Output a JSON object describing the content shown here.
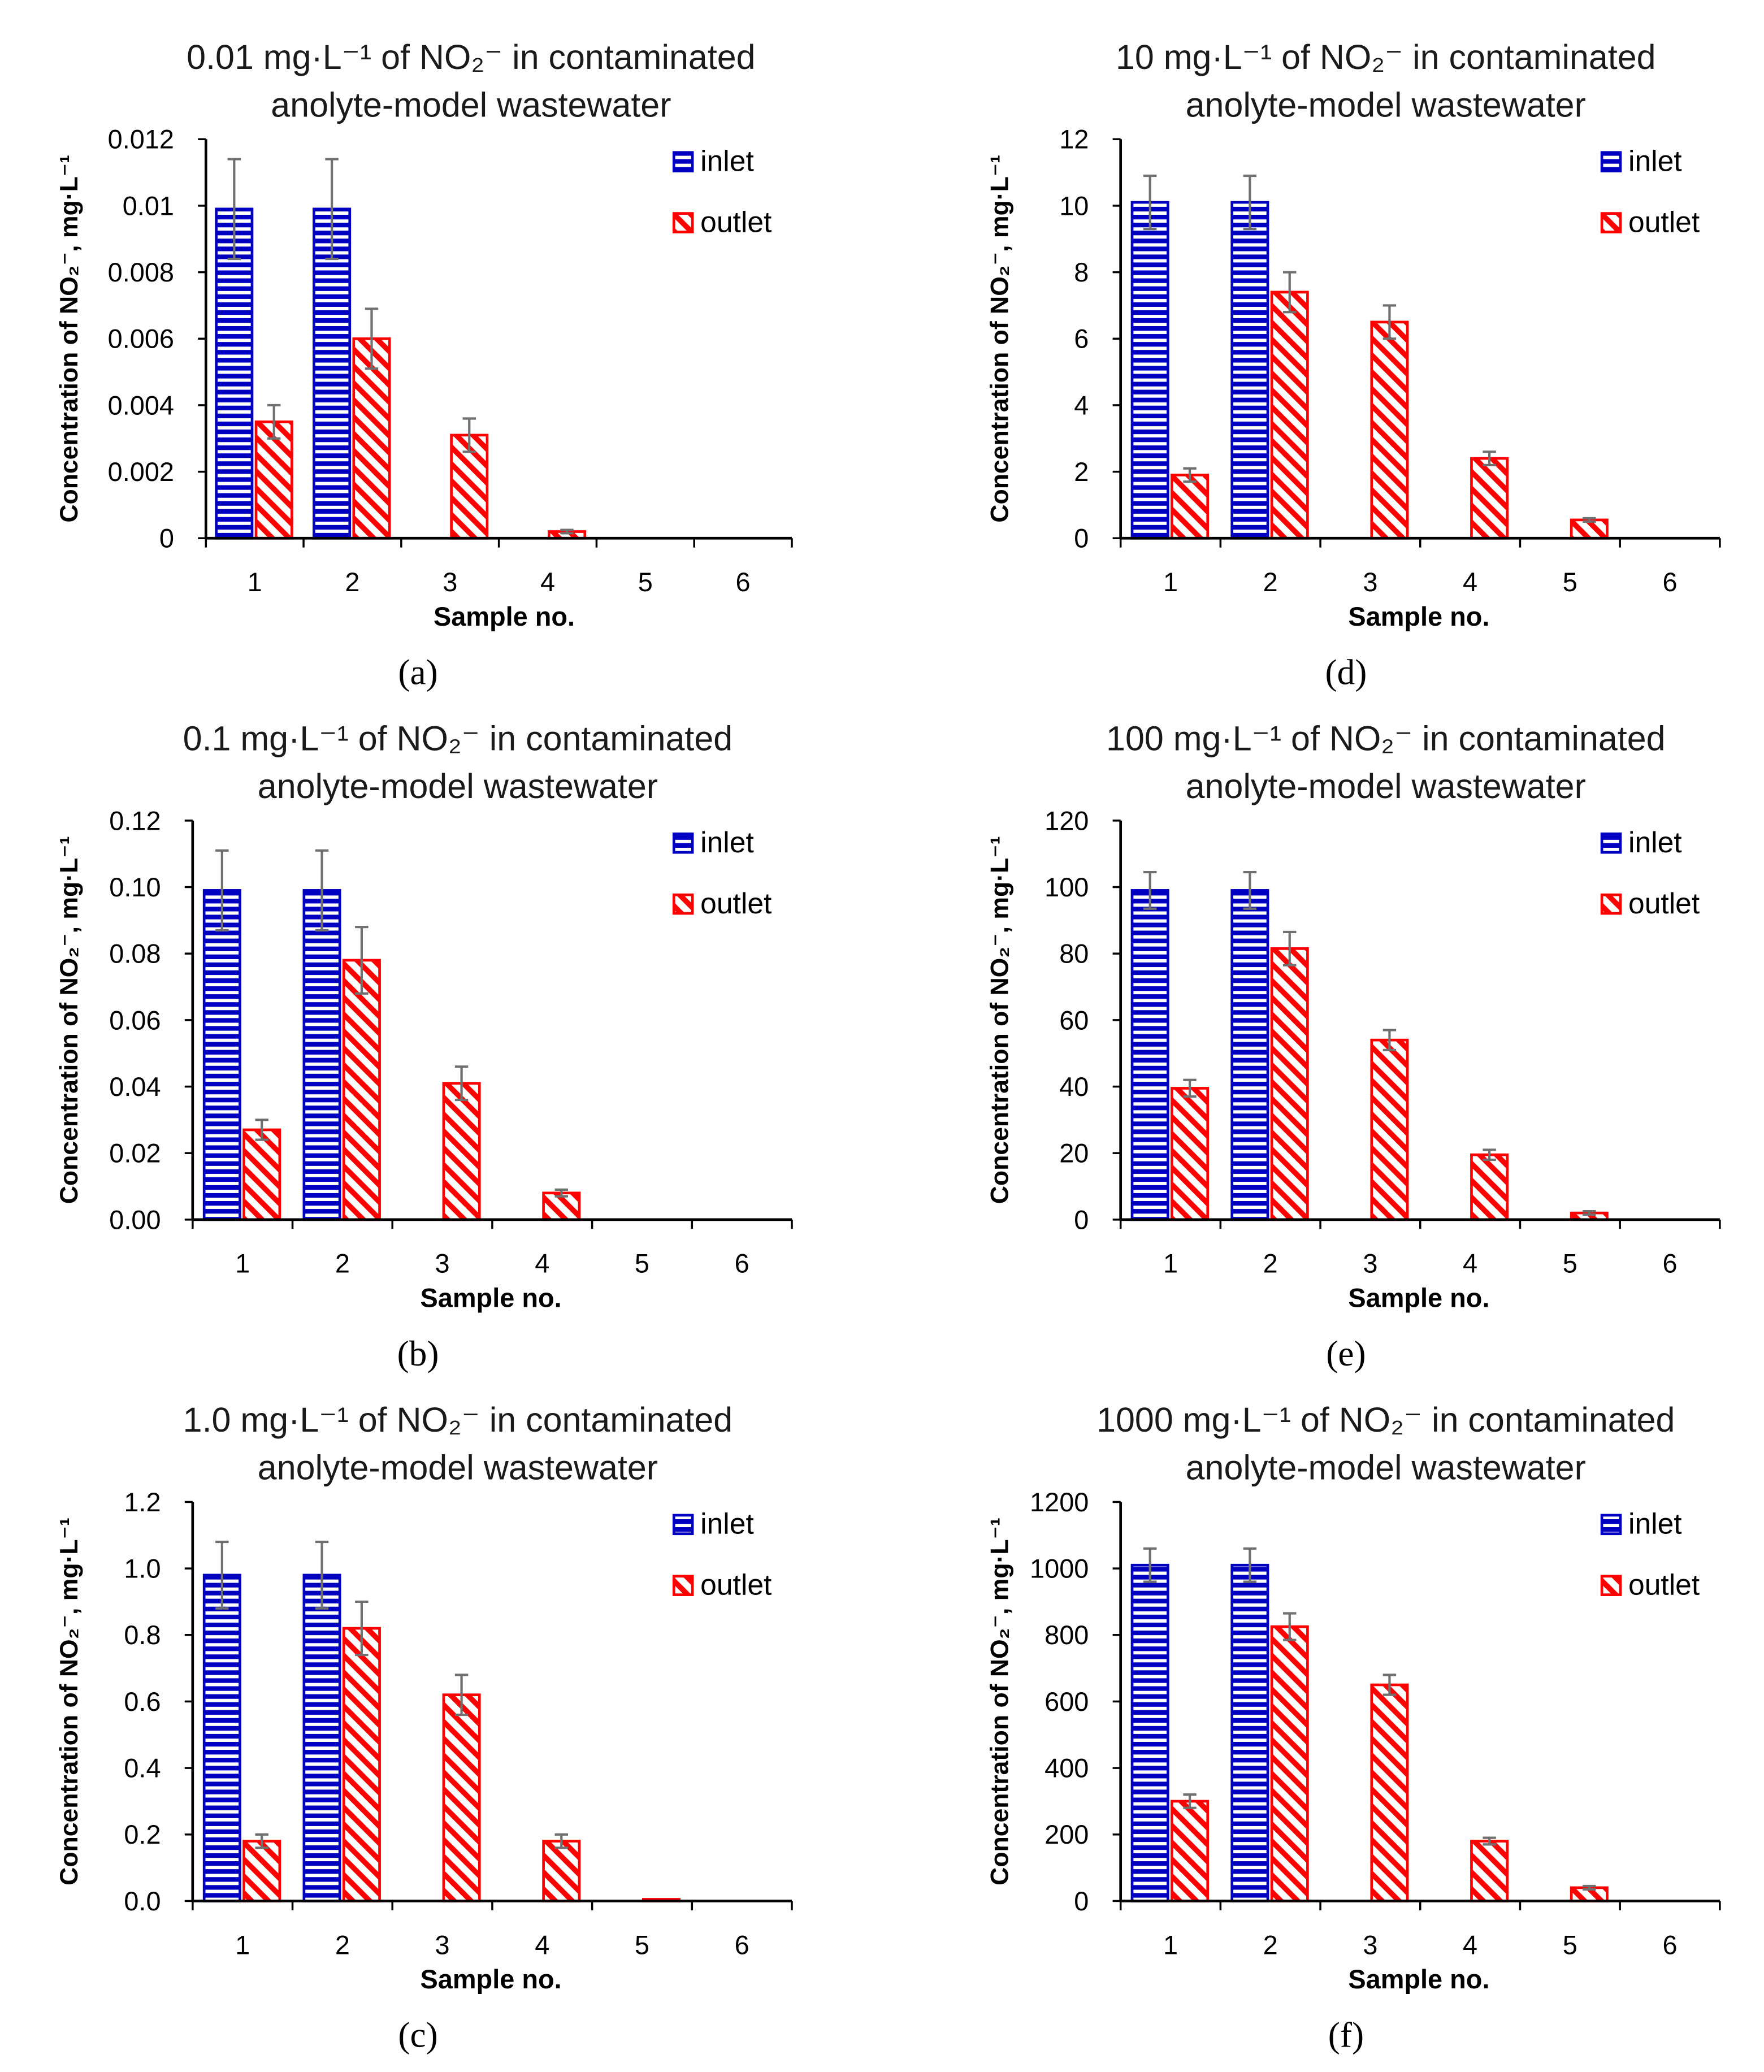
{
  "colors": {
    "inlet": "#0000c0",
    "outlet": "#ff0000",
    "error": "#707070",
    "axis": "#000000"
  },
  "chart_data": [
    {
      "type": "bar",
      "panel": "(a)",
      "title": [
        "0.01 mg·L⁻¹ of NO₂⁻ in contaminated",
        "anolyte-model wastewater"
      ],
      "xlabel": "Sample no.",
      "ylabel": "Concentration of NO₂⁻, mg·L⁻¹",
      "categories": [
        "1",
        "2",
        "3",
        "4",
        "5",
        "6"
      ],
      "ylim": [
        0,
        0.012
      ],
      "yticks": [
        "0",
        "0.002",
        "0.004",
        "0.006",
        "0.008",
        "0.01",
        "0.012"
      ],
      "legend": "top-right",
      "series": [
        {
          "name": "inlet",
          "values": [
            0.0099,
            0.0099,
            0,
            0,
            0,
            0
          ],
          "errors": [
            0.0015,
            0.0015,
            0,
            0,
            0,
            0
          ]
        },
        {
          "name": "outlet",
          "values": [
            0.0035,
            0.006,
            0.0031,
            0.0002,
            0,
            0
          ],
          "errors": [
            0.0005,
            0.0009,
            0.0005,
            5e-05,
            0,
            0
          ]
        }
      ]
    },
    {
      "type": "bar",
      "panel": "(b)",
      "title": [
        "0.1 mg·L⁻¹ of NO₂⁻ in contaminated",
        "anolyte-model wastewater"
      ],
      "xlabel": "Sample no.",
      "ylabel": "Concentration of NO₂⁻, mg·L⁻¹",
      "categories": [
        "1",
        "2",
        "3",
        "4",
        "5",
        "6"
      ],
      "ylim": [
        0,
        0.12
      ],
      "yticks": [
        "0.00",
        "0.02",
        "0.04",
        "0.06",
        "0.08",
        "0.10",
        "0.12"
      ],
      "legend": "top-right",
      "series": [
        {
          "name": "inlet",
          "values": [
            0.099,
            0.099,
            0,
            0,
            0,
            0
          ],
          "errors": [
            0.012,
            0.012,
            0,
            0,
            0,
            0
          ]
        },
        {
          "name": "outlet",
          "values": [
            0.027,
            0.078,
            0.041,
            0.008,
            0,
            0
          ],
          "errors": [
            0.003,
            0.01,
            0.005,
            0.001,
            0,
            0
          ]
        }
      ]
    },
    {
      "type": "bar",
      "panel": "(c)",
      "title": [
        "1.0 mg·L⁻¹ of NO₂⁻ in contaminated",
        "anolyte-model wastewater"
      ],
      "xlabel": "Sample no.",
      "ylabel": "Concentration of NO₂⁻, mg·L⁻¹",
      "categories": [
        "1",
        "2",
        "3",
        "4",
        "5",
        "6"
      ],
      "ylim": [
        0,
        1.2
      ],
      "yticks": [
        "0.0",
        "0.2",
        "0.4",
        "0.6",
        "0.8",
        "1.0",
        "1.2"
      ],
      "legend": "top-right",
      "series": [
        {
          "name": "inlet",
          "values": [
            0.98,
            0.98,
            0,
            0,
            0,
            0
          ],
          "errors": [
            0.1,
            0.1,
            0,
            0,
            0,
            0
          ]
        },
        {
          "name": "outlet",
          "values": [
            0.18,
            0.82,
            0.62,
            0.18,
            0.005,
            0
          ],
          "errors": [
            0.02,
            0.08,
            0.06,
            0.02,
            0,
            0
          ]
        }
      ]
    },
    {
      "type": "bar",
      "panel": "(d)",
      "title": [
        "10 mg·L⁻¹ of NO₂⁻ in contaminated",
        "anolyte-model wastewater"
      ],
      "xlabel": "Sample no.",
      "ylabel": "Concentration of NO₂⁻, mg·L⁻¹",
      "categories": [
        "1",
        "2",
        "3",
        "4",
        "5",
        "6"
      ],
      "ylim": [
        0,
        12
      ],
      "yticks": [
        "0",
        "2",
        "4",
        "6",
        "8",
        "10",
        "12"
      ],
      "legend": "top-right",
      "series": [
        {
          "name": "inlet",
          "values": [
            10.1,
            10.1,
            0,
            0,
            0,
            0
          ],
          "errors": [
            0.8,
            0.8,
            0,
            0,
            0,
            0
          ]
        },
        {
          "name": "outlet",
          "values": [
            1.9,
            7.4,
            6.5,
            2.4,
            0.55,
            0
          ],
          "errors": [
            0.2,
            0.6,
            0.5,
            0.2,
            0.05,
            0
          ]
        }
      ]
    },
    {
      "type": "bar",
      "panel": "(e)",
      "title": [
        "100 mg·L⁻¹ of NO₂⁻ in contaminated",
        "anolyte-model wastewater"
      ],
      "xlabel": "Sample no.",
      "ylabel": "Concentration of NO₂⁻, mg·L⁻¹",
      "categories": [
        "1",
        "2",
        "3",
        "4",
        "5",
        "6"
      ],
      "ylim": [
        0,
        120
      ],
      "yticks": [
        "0",
        "20",
        "40",
        "60",
        "80",
        "100",
        "120"
      ],
      "legend": "top-right",
      "series": [
        {
          "name": "inlet",
          "values": [
            99,
            99,
            0,
            0,
            0,
            0
          ],
          "errors": [
            5.5,
            5.5,
            0,
            0,
            0,
            0
          ]
        },
        {
          "name": "outlet",
          "values": [
            39.5,
            81.5,
            54,
            19.5,
            2,
            0
          ],
          "errors": [
            2.5,
            5,
            3,
            1.5,
            0.5,
            0
          ]
        }
      ]
    },
    {
      "type": "bar",
      "panel": "(f)",
      "title": [
        "1000 mg·L⁻¹ of NO₂⁻ in contaminated",
        "anolyte-model wastewater"
      ],
      "xlabel": "Sample no.",
      "ylabel": "Concentration of NO₂⁻, mg·L⁻¹",
      "categories": [
        "1",
        "2",
        "3",
        "4",
        "5",
        "6"
      ],
      "ylim": [
        0,
        1200
      ],
      "yticks": [
        "0",
        "200",
        "400",
        "600",
        "800",
        "1000",
        "1200"
      ],
      "legend": "top-right",
      "series": [
        {
          "name": "inlet",
          "values": [
            1010,
            1010,
            0,
            0,
            0,
            0
          ],
          "errors": [
            50,
            50,
            0,
            0,
            0,
            0
          ]
        },
        {
          "name": "outlet",
          "values": [
            300,
            825,
            650,
            180,
            40,
            0
          ],
          "errors": [
            20,
            40,
            30,
            10,
            5,
            0
          ]
        }
      ]
    }
  ]
}
